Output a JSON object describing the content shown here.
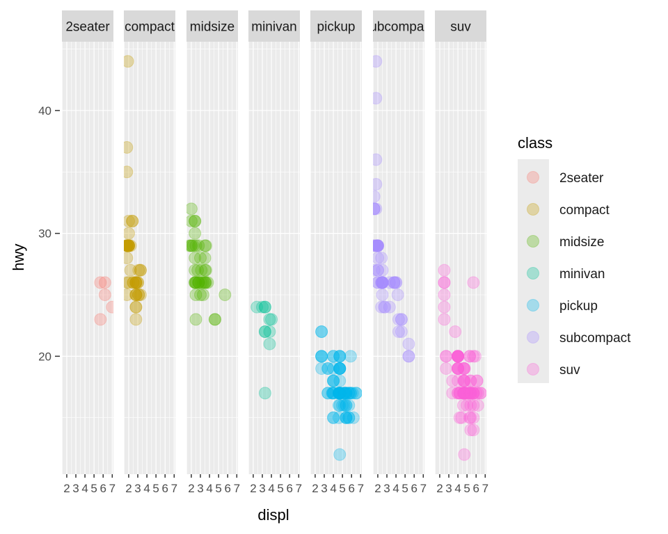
{
  "chart_data": {
    "type": "scatter",
    "facet": "class",
    "x_label": "displ",
    "y_label": "hwy",
    "legend_title": "class",
    "legend_position": "right",
    "grid": true,
    "ylim": [
      10.4,
      45.6
    ],
    "xlim": [
      1.47,
      7.13
    ],
    "y_ticks": [
      20,
      30,
      40
    ],
    "x_ticks": [
      2,
      3,
      4,
      5,
      6,
      7
    ],
    "colors": {
      "2seater": "#F8766D",
      "compact": "#C49A00",
      "midsize": "#53B400",
      "minivan": "#00C094",
      "pickup": "#00B6EB",
      "subcompact": "#A58AFF",
      "suv": "#FB61D7"
    },
    "panels": [
      {
        "label": "2seater",
        "points": [
          [
            5.7,
            26
          ],
          [
            5.7,
            23
          ],
          [
            6.2,
            26
          ],
          [
            6.2,
            25
          ],
          [
            7.0,
            24
          ]
        ]
      },
      {
        "label": "compact",
        "points": [
          [
            1.8,
            29
          ],
          [
            1.8,
            29
          ],
          [
            2.0,
            31
          ],
          [
            2.0,
            30
          ],
          [
            2.8,
            26
          ],
          [
            2.8,
            26
          ],
          [
            3.1,
            27
          ],
          [
            1.8,
            26
          ],
          [
            1.8,
            25
          ],
          [
            1.8,
            28
          ],
          [
            2.0,
            29
          ],
          [
            2.0,
            29
          ],
          [
            2.8,
            25
          ],
          [
            2.8,
            25
          ],
          [
            2.8,
            25
          ],
          [
            2.8,
            24
          ],
          [
            3.1,
            25
          ],
          [
            3.1,
            25
          ],
          [
            2.2,
            27
          ],
          [
            2.2,
            29
          ],
          [
            2.4,
            31
          ],
          [
            2.4,
            31
          ],
          [
            3.0,
            26
          ],
          [
            3.0,
            26
          ],
          [
            3.3,
            27
          ],
          [
            1.8,
            29
          ],
          [
            1.8,
            29
          ],
          [
            1.9,
            44
          ],
          [
            2.0,
            29
          ],
          [
            2.0,
            29
          ],
          [
            2.5,
            26
          ],
          [
            2.5,
            26
          ],
          [
            1.8,
            37
          ],
          [
            1.8,
            35
          ],
          [
            1.8,
            29
          ],
          [
            2.0,
            26
          ],
          [
            2.8,
            24
          ],
          [
            2.8,
            23
          ],
          [
            3.3,
            27
          ],
          [
            3.3,
            25
          ],
          [
            2.0,
            29
          ],
          [
            2.0,
            29
          ],
          [
            2.8,
            26
          ],
          [
            2.8,
            26
          ]
        ]
      },
      {
        "label": "midsize",
        "points": [
          [
            2.4,
            27
          ],
          [
            2.4,
            30
          ],
          [
            3.1,
            26
          ],
          [
            3.5,
            29
          ],
          [
            3.6,
            26
          ],
          [
            2.4,
            31
          ],
          [
            2.4,
            31
          ],
          [
            2.5,
            26
          ],
          [
            2.5,
            26
          ],
          [
            3.0,
            28
          ],
          [
            3.3,
            26
          ],
          [
            3.5,
            26
          ],
          [
            3.8,
            26
          ],
          [
            2.5,
            25
          ],
          [
            2.5,
            23
          ],
          [
            3.0,
            25
          ],
          [
            3.3,
            25
          ],
          [
            1.8,
            29
          ],
          [
            2.2,
            29
          ],
          [
            2.4,
            26
          ],
          [
            2.8,
            26
          ],
          [
            2.8,
            26
          ],
          [
            3.5,
            28
          ],
          [
            3.5,
            27
          ],
          [
            2.0,
            32
          ],
          [
            2.0,
            31
          ],
          [
            2.5,
            29
          ],
          [
            2.7,
            27
          ],
          [
            5.7,
            25
          ],
          [
            2.4,
            26
          ],
          [
            2.4,
            28
          ],
          [
            3.1,
            27
          ],
          [
            3.5,
            26
          ],
          [
            3.6,
            27
          ],
          [
            4.6,
            23
          ],
          [
            4.6,
            23
          ],
          [
            2.0,
            29
          ],
          [
            2.0,
            29
          ],
          [
            2.8,
            29
          ],
          [
            2.8,
            26
          ],
          [
            3.6,
            29
          ]
        ]
      },
      {
        "label": "minivan",
        "points": [
          [
            2.4,
            24
          ],
          [
            3.0,
            24
          ],
          [
            3.3,
            22
          ],
          [
            3.3,
            22
          ],
          [
            3.3,
            24
          ],
          [
            3.3,
            24
          ],
          [
            3.3,
            17
          ],
          [
            3.8,
            22
          ],
          [
            3.8,
            21
          ],
          [
            3.8,
            23
          ],
          [
            4.0,
            23
          ]
        ]
      },
      {
        "label": "pickup",
        "points": [
          [
            2.7,
            20
          ],
          [
            2.7,
            20
          ],
          [
            2.7,
            22
          ],
          [
            3.4,
            17
          ],
          [
            3.4,
            19
          ],
          [
            4.0,
            18
          ],
          [
            4.0,
            20
          ],
          [
            4.7,
            17
          ],
          [
            4.7,
            17
          ],
          [
            4.7,
            17
          ],
          [
            4.7,
            17
          ],
          [
            4.7,
            17
          ],
          [
            4.7,
            17
          ],
          [
            5.2,
            17
          ],
          [
            5.2,
            17
          ],
          [
            5.7,
            15
          ],
          [
            5.9,
            17
          ],
          [
            4.7,
            17
          ],
          [
            4.7,
            17
          ],
          [
            4.7,
            19
          ],
          [
            4.7,
            12
          ],
          [
            5.2,
            17
          ],
          [
            5.2,
            17
          ],
          [
            3.9,
            17
          ],
          [
            3.9,
            17
          ],
          [
            4.7,
            17
          ],
          [
            5.2,
            16
          ],
          [
            5.7,
            15
          ],
          [
            5.9,
            17
          ],
          [
            4.6,
            17
          ],
          [
            5.4,
            17
          ],
          [
            5.4,
            16
          ],
          [
            4.0,
            15
          ],
          [
            4.0,
            15
          ],
          [
            4.6,
            17
          ],
          [
            4.6,
            16
          ],
          [
            5.0,
            16
          ],
          [
            5.4,
            15
          ],
          [
            5.4,
            15
          ],
          [
            4.0,
            19
          ],
          [
            4.7,
            20
          ],
          [
            4.7,
            19
          ],
          [
            4.7,
            17
          ],
          [
            4.7,
            16
          ],
          [
            5.4,
            15
          ],
          [
            5.4,
            17
          ],
          [
            6.2,
            15
          ],
          [
            6.5,
            17
          ],
          [
            2.7,
            19
          ],
          [
            2.7,
            20
          ],
          [
            2.7,
            22
          ],
          [
            4.0,
            18
          ],
          [
            4.0,
            20
          ],
          [
            4.7,
            19
          ],
          [
            4.7,
            19
          ],
          [
            5.7,
            17
          ],
          [
            5.4,
            17
          ],
          [
            4.7,
            20
          ],
          [
            4.7,
            18
          ],
          [
            4.7,
            20
          ],
          [
            5.7,
            17
          ],
          [
            5.9,
            20
          ],
          [
            4.0,
            17
          ],
          [
            4.0,
            18
          ],
          [
            4.7,
            19
          ],
          [
            4.6,
            15
          ],
          [
            5.4,
            16
          ],
          [
            6.1,
            17
          ],
          [
            4.0,
            17
          ],
          [
            4.6,
            17
          ],
          [
            6.5,
            17
          ],
          [
            3.4,
            19
          ],
          [
            3.4,
            17
          ],
          [
            4.7,
            17
          ],
          [
            5.7,
            16
          ]
        ]
      },
      {
        "label": "subcompact",
        "points": [
          [
            3.8,
            26
          ],
          [
            3.8,
            26
          ],
          [
            4.0,
            26
          ],
          [
            4.6,
            22
          ],
          [
            4.6,
            23
          ],
          [
            4.6,
            23
          ],
          [
            5.4,
            20
          ],
          [
            5.4,
            20
          ],
          [
            1.6,
            29
          ],
          [
            1.6,
            32
          ],
          [
            1.6,
            27
          ],
          [
            1.6,
            29
          ],
          [
            1.6,
            33
          ],
          [
            1.8,
            36
          ],
          [
            1.8,
            32
          ],
          [
            1.8,
            29
          ],
          [
            2.0,
            29
          ],
          [
            2.0,
            29
          ],
          [
            2.0,
            29
          ],
          [
            2.4,
            26
          ],
          [
            2.4,
            24
          ],
          [
            2.7,
            24
          ],
          [
            2.8,
            24
          ],
          [
            2.4,
            28
          ],
          [
            2.4,
            26
          ],
          [
            3.3,
            24
          ],
          [
            3.3,
            26
          ],
          [
            4.3,
            22
          ],
          [
            4.3,
            23
          ],
          [
            5.4,
            21
          ],
          [
            2.5,
            27
          ],
          [
            2.5,
            25
          ],
          [
            1.8,
            44
          ],
          [
            1.8,
            41
          ],
          [
            1.8,
            34
          ],
          [
            1.9,
            29
          ],
          [
            1.9,
            29
          ],
          [
            2.0,
            26
          ],
          [
            2.0,
            27
          ],
          [
            2.5,
            26
          ],
          [
            2.5,
            26
          ],
          [
            3.8,
            26
          ],
          [
            4.0,
            26
          ],
          [
            4.2,
            25
          ],
          [
            1.6,
            32
          ],
          [
            1.6,
            32
          ],
          [
            2.0,
            28
          ],
          [
            2.0,
            29
          ],
          [
            2.0,
            29
          ],
          [
            2.0,
            26
          ],
          [
            2.0,
            27
          ],
          [
            2.5,
            26
          ],
          [
            2.5,
            26
          ],
          [
            2.5,
            26
          ],
          [
            2.5,
            26
          ]
        ]
      },
      {
        "label": "suv",
        "points": [
          [
            5.3,
            20
          ],
          [
            5.3,
            15
          ],
          [
            5.3,
            20
          ],
          [
            5.7,
            17
          ],
          [
            6.0,
            17
          ],
          [
            5.7,
            26
          ],
          [
            6.5,
            17
          ],
          [
            2.5,
            26
          ],
          [
            4.0,
            20
          ],
          [
            4.0,
            19
          ],
          [
            4.0,
            20
          ],
          [
            4.0,
            20
          ],
          [
            4.6,
            17
          ],
          [
            5.0,
            17
          ],
          [
            4.0,
            17
          ],
          [
            4.0,
            19
          ],
          [
            4.7,
            17
          ],
          [
            4.7,
            17
          ],
          [
            4.7,
            17
          ],
          [
            4.7,
            18
          ],
          [
            4.7,
            12
          ],
          [
            5.2,
            17
          ],
          [
            5.2,
            17
          ],
          [
            5.7,
            17
          ],
          [
            5.9,
            20
          ],
          [
            5.4,
            17
          ],
          [
            5.4,
            16
          ],
          [
            5.4,
            18
          ],
          [
            4.6,
            16
          ],
          [
            4.6,
            17
          ],
          [
            4.6,
            18
          ],
          [
            5.0,
            16
          ],
          [
            5.4,
            17
          ],
          [
            4.2,
            17
          ],
          [
            4.2,
            17
          ],
          [
            4.6,
            17
          ],
          [
            5.4,
            17
          ],
          [
            6.2,
            17
          ],
          [
            6.2,
            16
          ],
          [
            6.5,
            17
          ],
          [
            4.0,
            20
          ],
          [
            4.0,
            19
          ],
          [
            4.7,
            19
          ],
          [
            4.7,
            18
          ],
          [
            5.7,
            17
          ],
          [
            6.1,
            18
          ],
          [
            4.0,
            19
          ],
          [
            4.0,
            20
          ],
          [
            4.0,
            20
          ],
          [
            4.0,
            20
          ],
          [
            4.6,
            19
          ],
          [
            5.0,
            17
          ],
          [
            4.2,
            15
          ],
          [
            4.4,
            15
          ],
          [
            4.7,
            17
          ],
          [
            5.7,
            14
          ],
          [
            5.7,
            15
          ],
          [
            5.4,
            14
          ],
          [
            5.4,
            15
          ],
          [
            4.0,
            20
          ],
          [
            4.6,
            17
          ],
          [
            4.7,
            19
          ],
          [
            5.7,
            20
          ],
          [
            5.7,
            17
          ],
          [
            2.5,
            26
          ],
          [
            2.5,
            23
          ],
          [
            2.5,
            27
          ],
          [
            3.7,
            22
          ],
          [
            4.7,
            19
          ],
          [
            5.4,
            18
          ],
          [
            5.4,
            17
          ],
          [
            2.5,
            25
          ],
          [
            2.5,
            24
          ],
          [
            2.7,
            20
          ],
          [
            2.7,
            20
          ],
          [
            2.7,
            19
          ],
          [
            3.4,
            17
          ],
          [
            3.4,
            18
          ],
          [
            4.0,
            20
          ],
          [
            4.0,
            19
          ],
          [
            4.7,
            17
          ],
          [
            5.7,
            16
          ],
          [
            6.1,
            18
          ],
          [
            4.0,
            17
          ],
          [
            4.0,
            18
          ],
          [
            4.7,
            17
          ],
          [
            4.7,
            18
          ],
          [
            5.0,
            17
          ],
          [
            4.2,
            17
          ]
        ]
      }
    ]
  }
}
